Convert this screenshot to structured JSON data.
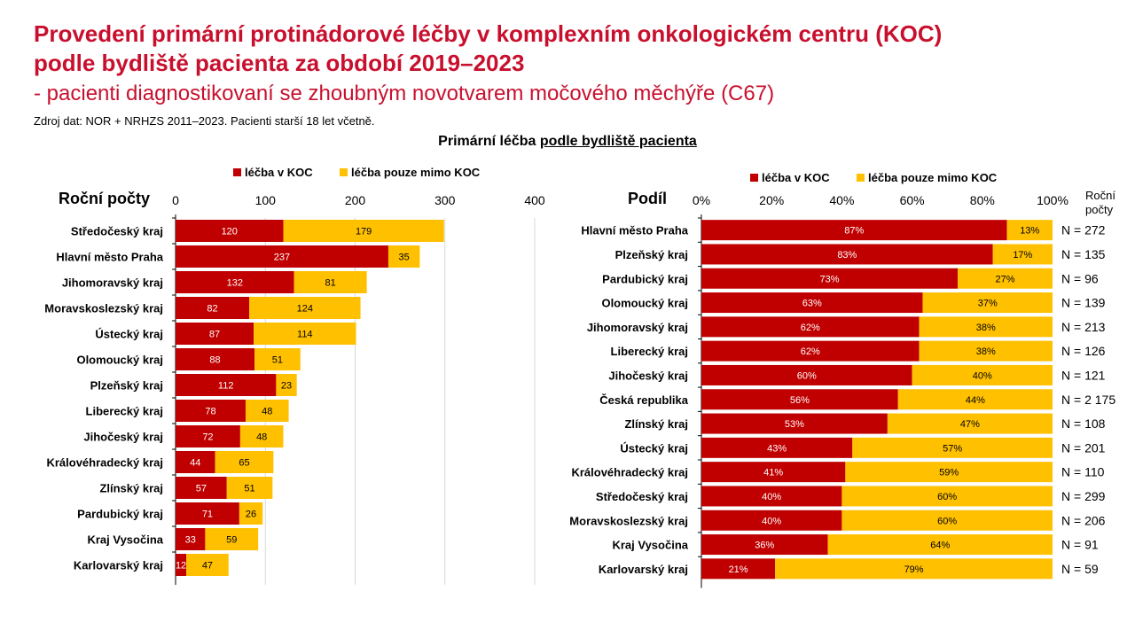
{
  "header": {
    "title_line1": "Provedení primární protinádorové léčby v komplexním onkologickém centru (KOC)",
    "title_line2": "podle bydliště pacienta za období 2019–2023",
    "subtitle": "- pacienti diagnostikovaní se zhoubným novotvarem močového měchýře (C67)",
    "source": "Zdroj dat: NOR + NRHZS 2011–2023. Pacienti starší 18 let včetně.",
    "section_prefix": "Primární léčba ",
    "section_underlined": "podle bydliště pacienta"
  },
  "colors": {
    "koc": "#c00000",
    "mimo": "#ffc000"
  },
  "chart_data": [
    {
      "type": "bar",
      "orientation": "horizontal",
      "stacked": true,
      "title": "Roční počty",
      "legend_position": "top",
      "xlim": [
        0,
        400
      ],
      "xticks": [
        0,
        100,
        200,
        300,
        400
      ],
      "grid": true,
      "categories": [
        "Středočeský kraj",
        "Hlavní město Praha",
        "Jihomoravský kraj",
        "Moravskoslezský kraj",
        "Ústecký kraj",
        "Olomoucký kraj",
        "Plzeňský kraj",
        "Liberecký kraj",
        "Jihočeský kraj",
        "Královéhradecký kraj",
        "Zlínský kraj",
        "Pardubický kraj",
        "Kraj Vysočina",
        "Karlovarský kraj"
      ],
      "series": [
        {
          "name": "léčba v KOC",
          "values": [
            120,
            237,
            132,
            82,
            87,
            88,
            112,
            78,
            72,
            44,
            57,
            71,
            33,
            12
          ]
        },
        {
          "name": "léčba pouze mimo KOC",
          "values": [
            179,
            35,
            81,
            124,
            114,
            51,
            23,
            48,
            48,
            65,
            51,
            26,
            59,
            47
          ]
        }
      ]
    },
    {
      "type": "bar",
      "orientation": "horizontal",
      "stacked": true,
      "percent": true,
      "title": "Podíl",
      "legend_position": "top",
      "xlim": [
        0,
        100
      ],
      "xticks": [
        "0%",
        "20%",
        "40%",
        "60%",
        "80%",
        "100%"
      ],
      "grid": false,
      "side_label_header": "Roční počty",
      "categories": [
        "Hlavní město Praha",
        "Plzeňský kraj",
        "Pardubický kraj",
        "Olomoucký kraj",
        "Jihomoravský kraj",
        "Liberecký kraj",
        "Jihočeský kraj",
        "Česká republika",
        "Zlínský kraj",
        "Ústecký kraj",
        "Královéhradecký kraj",
        "Středočeský kraj",
        "Moravskoslezský kraj",
        "Kraj Vysočina",
        "Karlovarský kraj"
      ],
      "series": [
        {
          "name": "léčba v KOC",
          "values": [
            87,
            83,
            73,
            63,
            62,
            62,
            60,
            56,
            53,
            43,
            41,
            40,
            40,
            36,
            21
          ]
        },
        {
          "name": "léčba pouze mimo KOC",
          "values": [
            13,
            17,
            27,
            37,
            38,
            38,
            40,
            44,
            47,
            57,
            59,
            60,
            60,
            64,
            79
          ]
        }
      ],
      "n_labels": [
        "N = 272",
        "N = 135",
        "N = 96",
        "N = 139",
        "N = 213",
        "N = 126",
        "N = 121",
        "N = 2 175",
        "N = 108",
        "N = 201",
        "N = 110",
        "N = 299",
        "N = 206",
        "N = 91",
        "N = 59"
      ]
    }
  ]
}
